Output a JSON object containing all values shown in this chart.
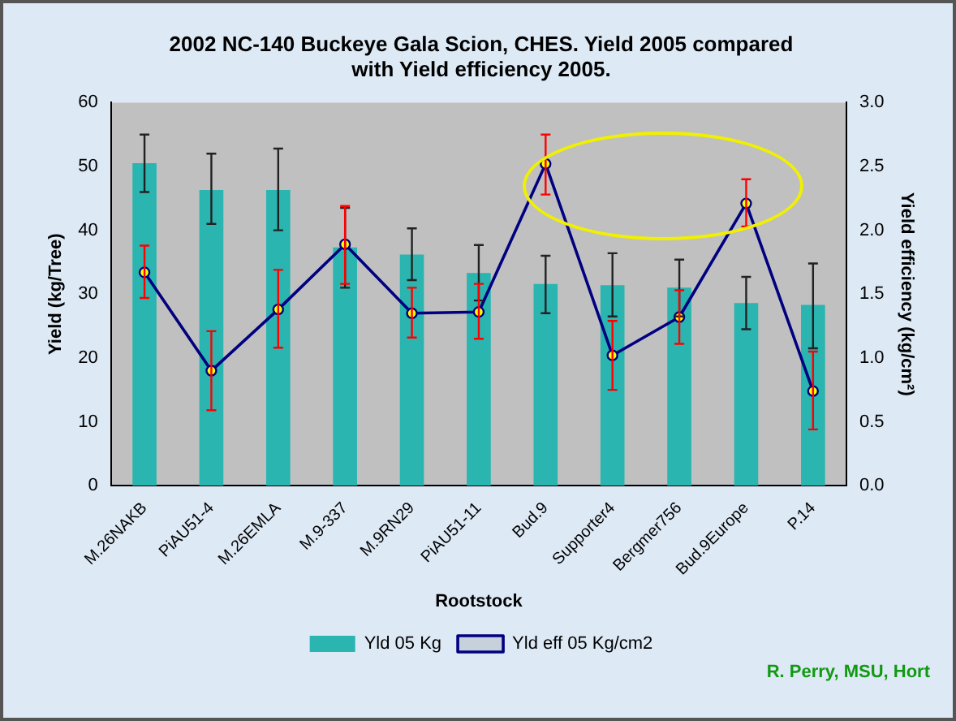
{
  "chart_data": {
    "type": "bar",
    "title": "2002 NC-140 Buckeye Gala Scion, CHES. Yield 2005 compared with Yield efficiency 2005.",
    "xlabel": "Rootstock",
    "ylabel": "Yield (kg/Tree)",
    "y2label": "Yield efficiency (kg/cm²)",
    "categories": [
      "M.26NAKB",
      "PiAU51-4",
      "M.26EMLA",
      "M.9-337",
      "M.9RN29",
      "PiAU51-11",
      "Bud.9",
      "Supporter4",
      "Bergmer756",
      "Bud.9Europe",
      "P.14"
    ],
    "series": [
      {
        "name": "Yld 05 Kg",
        "color": "#2ab5b0",
        "values": [
          50.5,
          46.3,
          46.3,
          37.3,
          36.2,
          33.3,
          31.6,
          31.4,
          31.0,
          28.6,
          28.3
        ],
        "errors": [
          [
            46,
            55
          ],
          [
            41,
            52
          ],
          [
            40,
            52.8
          ],
          [
            31,
            43.5
          ],
          [
            32.2,
            40.3
          ],
          [
            29,
            37.7
          ],
          [
            27,
            36
          ],
          [
            26.5,
            36.4
          ],
          [
            26.5,
            35.4
          ],
          [
            24.5,
            32.7
          ],
          [
            21.5,
            34.8
          ]
        ]
      },
      {
        "name": "Yld eff 05 Kg/cm2",
        "type": "line",
        "axis": "y2",
        "color": "#000080",
        "values": [
          1.67,
          0.9,
          1.38,
          1.89,
          1.35,
          1.36,
          2.52,
          1.02,
          1.32,
          2.21,
          0.74
        ],
        "errors": [
          [
            1.47,
            1.88
          ],
          [
            0.59,
            1.21
          ],
          [
            1.08,
            1.69
          ],
          [
            1.58,
            2.19
          ],
          [
            1.16,
            1.55
          ],
          [
            1.15,
            1.58
          ],
          [
            2.28,
            2.75
          ],
          [
            0.75,
            1.29
          ],
          [
            1.11,
            1.53
          ],
          [
            2.03,
            2.4
          ],
          [
            0.44,
            1.05
          ]
        ]
      }
    ],
    "ylim": [
      0,
      60
    ],
    "yticks": [
      0,
      10,
      20,
      30,
      40,
      50,
      60
    ],
    "y2lim": [
      0,
      3
    ],
    "y2ticks": [
      {
        "value": 0,
        "label": "0.0"
      },
      0.5,
      {
        "value": 1,
        "label": "1.0"
      },
      1.5,
      {
        "value": 2,
        "label": "2.0"
      },
      2.5,
      {
        "value": 3,
        "label": "3.0"
      }
    ],
    "legend": "bottom",
    "marker": "circle",
    "grid": false,
    "annotations": [
      "R. Perry, MSU, Hort"
    ]
  }
}
